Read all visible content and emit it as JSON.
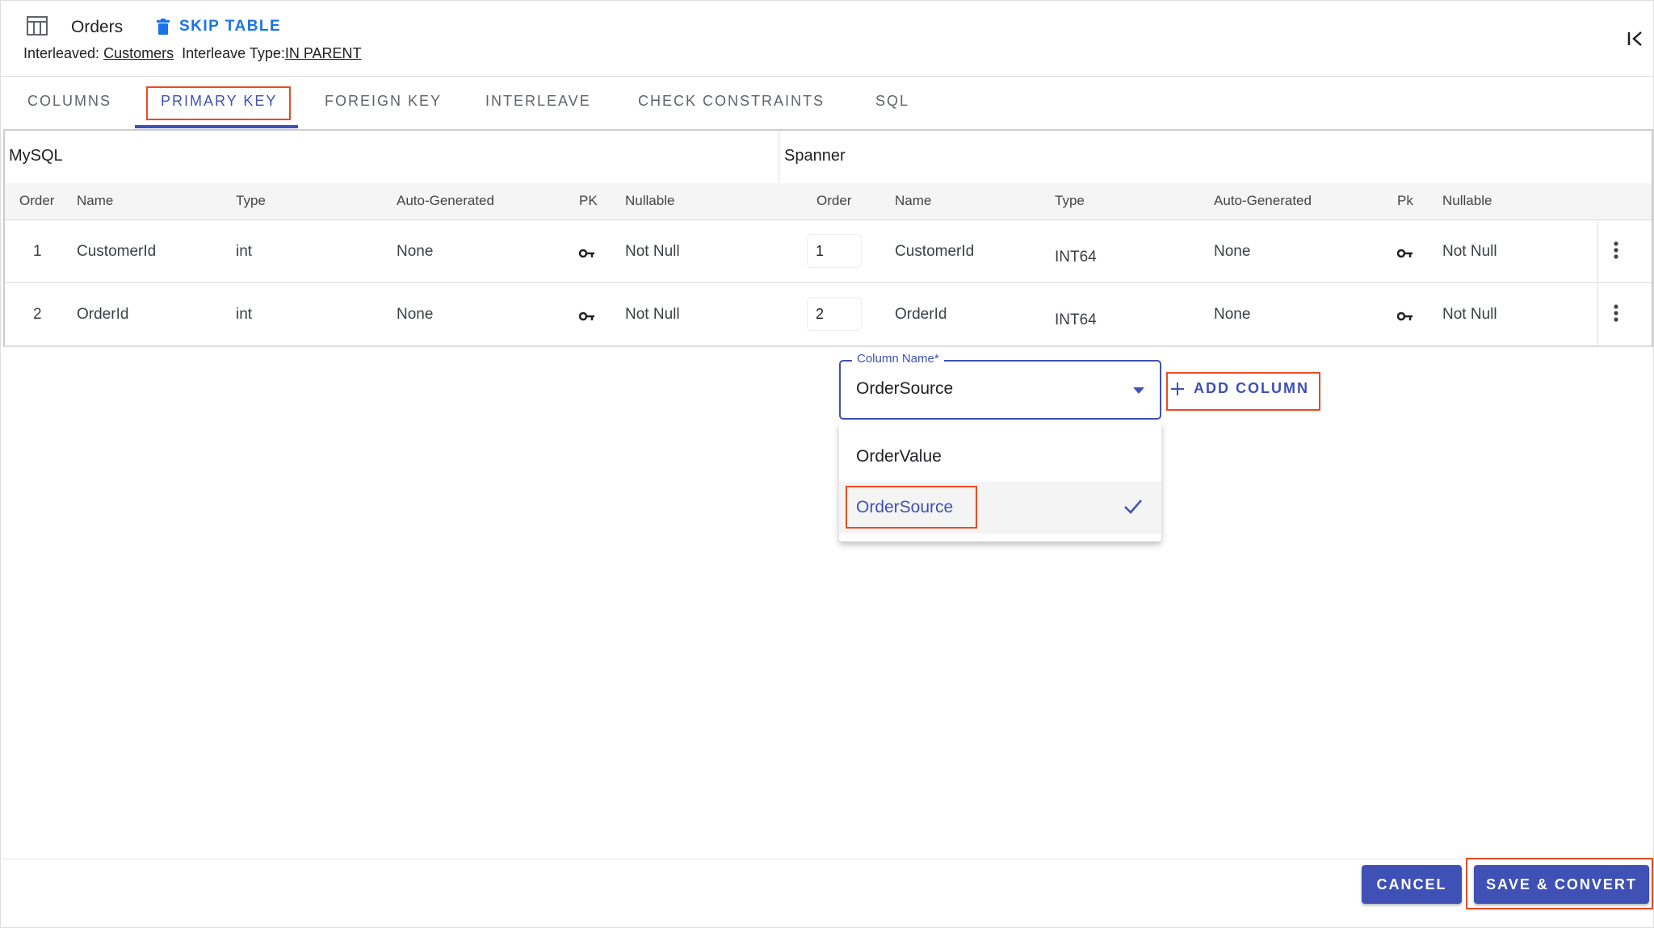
{
  "header": {
    "table_name": "Orders",
    "skip_label": "SKIP TABLE",
    "interleaved_label": "Interleaved:",
    "interleaved_value": "Customers",
    "interleave_type_label": "Interleave Type:",
    "interleave_type_value": "IN PARENT"
  },
  "tabs": [
    {
      "label": "COLUMNS"
    },
    {
      "label": "PRIMARY KEY",
      "active": true
    },
    {
      "label": "FOREIGN KEY"
    },
    {
      "label": "INTERLEAVE"
    },
    {
      "label": "CHECK CONSTRAINTS"
    },
    {
      "label": "SQL"
    }
  ],
  "table": {
    "source_title": "MySQL",
    "target_title": "Spanner",
    "headers": [
      "Order",
      "Name",
      "Type",
      "Auto-Generated",
      "PK",
      "Nullable",
      "Order",
      "Name",
      "Type",
      "Auto-Generated",
      "Pk",
      "Nullable"
    ],
    "rows": [
      {
        "src_order": "1",
        "src_name": "CustomerId",
        "src_type": "int",
        "src_auto": "None",
        "src_null": "Not Null",
        "sp_order": "1",
        "sp_name": "CustomerId",
        "sp_type": "INT64",
        "sp_auto": "None",
        "sp_null": "Not Null"
      },
      {
        "src_order": "2",
        "src_name": "OrderId",
        "src_type": "int",
        "src_auto": "None",
        "src_null": "Not Null",
        "sp_order": "2",
        "sp_name": "OrderId",
        "sp_type": "INT64",
        "sp_auto": "None",
        "sp_null": "Not Null"
      }
    ]
  },
  "column_select": {
    "label": "Column Name*",
    "value": "OrderSource",
    "options": [
      {
        "label": "OrderValue"
      },
      {
        "label": "OrderSource",
        "selected": true
      }
    ]
  },
  "add_column_label": "ADD COLUMN",
  "footer": {
    "cancel": "CANCEL",
    "save": "SAVE & CONVERT"
  },
  "colors": {
    "accent": "#3f51b5",
    "link_blue": "#1a73e8",
    "highlight": "#ea4a24"
  }
}
